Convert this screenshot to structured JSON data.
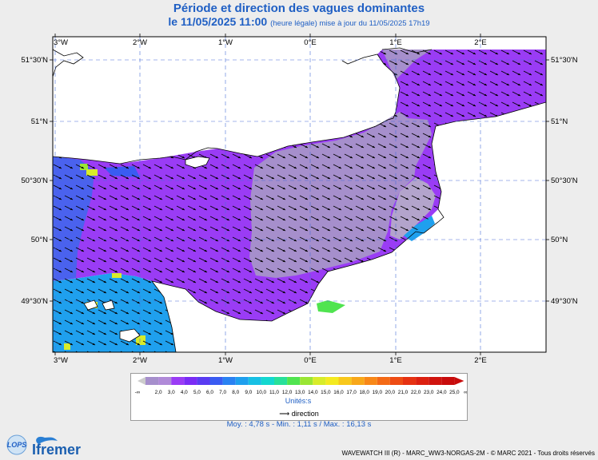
{
  "title": "Période et direction des vagues dominantes",
  "subtitle": "le 11/05/2025 11:00",
  "subtitle_note": "(heure légale) mise à jour du 11/05/2025 17h19",
  "axes": {
    "top_lon_labels": [
      "3°W",
      "2°W",
      "1°W",
      "0°E",
      "1°E",
      "2°E"
    ],
    "bottom_lon_labels": [
      "3°W",
      "2°W",
      "1°W",
      "0°E",
      "1°E",
      "2°E"
    ],
    "left_lat_labels": [
      "51°30'N",
      "51°N",
      "50°30'N",
      "50°N",
      "49°30'N"
    ],
    "right_lat_labels": [
      "51°30'N",
      "51°N",
      "50°30'N",
      "50°N",
      "49°30'N"
    ]
  },
  "legend": {
    "left_end": "-∞",
    "right_end": "∞",
    "values": [
      "2,0",
      "3,0",
      "4,0",
      "5,0",
      "6,0",
      "7,0",
      "8,0",
      "9,0",
      "10,0",
      "11,0",
      "12,0",
      "13,0",
      "14,0",
      "15,0",
      "16,0",
      "17,0",
      "18,0",
      "19,0",
      "20,0",
      "21,0",
      "22,0",
      "23,0",
      "24,0",
      "25,0"
    ],
    "colors": [
      "#a68fcc",
      "#b08ad8",
      "#9a3cf5",
      "#7a2cf5",
      "#5a3cf2",
      "#3a5cf2",
      "#2a82f2",
      "#1fa0ee",
      "#18c0e4",
      "#14d8d0",
      "#28e09a",
      "#50e450",
      "#9ae634",
      "#d8ec2a",
      "#f4ea20",
      "#f8c81c",
      "#f8a81a",
      "#f88818",
      "#f46a16",
      "#ee4c14",
      "#e63212",
      "#dc2010",
      "#d0140e",
      "#c80c0c"
    ],
    "units": "Unités:s",
    "direction_label": "direction"
  },
  "stats": "Moy. : 4,78 s  -  Min. : 1,11 s / Max. : 16,13 s",
  "footer": "WAVEWATCH III (R) - MARC_WW3-NORGAS-2M - © MARC 2021 - Tous droits réservés",
  "logos": {
    "lops": "LOPS",
    "ifremer": "Ifremer"
  },
  "colors": {
    "land": "#ffffff",
    "period_purple": "#9a3cf5",
    "period_lilac": "#a68fcc",
    "period_blue": "#4a62ee",
    "period_cyan": "#1fa0ee",
    "title_blue": "#1f5fc4"
  }
}
